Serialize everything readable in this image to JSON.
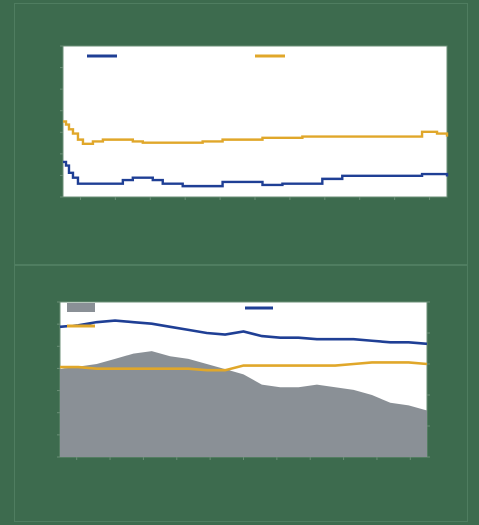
{
  "colors": {
    "background": "#3d6b4e",
    "plot_background": "#ffffff",
    "blue": "#1f3f95",
    "gold": "#e0a72a",
    "gray_area": "#8a9096"
  },
  "chart_data": [
    {
      "type": "line",
      "title": "",
      "xlabel": "",
      "ylabel": "",
      "grid": false,
      "legend": "top",
      "ylim": [
        5.4,
        7.9
      ],
      "y_ticks": [
        "",
        "",
        "",
        "",
        "",
        "",
        "",
        ""
      ],
      "x_tick_labels": [
        "",
        "",
        "",
        "",
        "",
        "",
        "",
        "",
        "",
        "",
        ""
      ],
      "x": [
        0,
        3,
        6,
        10,
        15,
        20,
        30,
        40,
        50,
        60,
        70,
        80,
        90,
        100,
        120,
        140,
        160,
        180,
        200,
        220,
        240,
        260,
        280,
        300,
        320,
        340,
        360,
        375,
        385
      ],
      "series": [
        {
          "name": "",
          "color": "#1f3f95",
          "values": [
            5.98,
            5.92,
            5.8,
            5.72,
            5.62,
            5.62,
            5.62,
            5.62,
            5.62,
            5.68,
            5.72,
            5.72,
            5.68,
            5.62,
            5.58,
            5.58,
            5.65,
            5.65,
            5.6,
            5.62,
            5.62,
            5.7,
            5.75,
            5.75,
            5.75,
            5.75,
            5.78,
            5.78,
            5.74
          ]
        },
        {
          "name": "",
          "color": "#e0a72a",
          "values": [
            6.65,
            6.6,
            6.52,
            6.45,
            6.35,
            6.28,
            6.32,
            6.35,
            6.35,
            6.35,
            6.32,
            6.3,
            6.3,
            6.3,
            6.3,
            6.32,
            6.35,
            6.35,
            6.38,
            6.38,
            6.4,
            6.4,
            6.4,
            6.4,
            6.4,
            6.4,
            6.48,
            6.45,
            6.4
          ]
        }
      ]
    },
    {
      "type": "line",
      "title": "",
      "xlabel": "",
      "ylabel": "",
      "ylabel_right": "",
      "grid": false,
      "legend": "top",
      "ylim": [
        0,
        6
      ],
      "y2lim": [
        3.0,
        8.0
      ],
      "y_ticks": [
        "",
        "",
        "",
        "",
        "",
        "",
        "",
        ""
      ],
      "y2_ticks": [
        "",
        "",
        "",
        "",
        "",
        ""
      ],
      "x_tick_labels": [
        "",
        "",
        "",
        "",
        "",
        "",
        "",
        "",
        "",
        "",
        ""
      ],
      "x": [
        0,
        5,
        10,
        15,
        20,
        25,
        30,
        35,
        40,
        45,
        50,
        55,
        60,
        65,
        70,
        75,
        80,
        85,
        90,
        95,
        100
      ],
      "series": [
        {
          "name": "",
          "type": "area",
          "axis": "left",
          "color": "#8a9096",
          "values": [
            3.4,
            3.5,
            3.6,
            3.8,
            4.0,
            4.1,
            3.9,
            3.8,
            3.6,
            3.4,
            3.2,
            2.8,
            2.7,
            2.7,
            2.8,
            2.7,
            2.6,
            2.4,
            2.1,
            2.0,
            1.8
          ]
        },
        {
          "name": "",
          "type": "line",
          "axis": "right",
          "color": "#1f3f95",
          "values": [
            7.2,
            7.25,
            7.35,
            7.4,
            7.35,
            7.3,
            7.2,
            7.1,
            7.0,
            6.95,
            7.05,
            6.9,
            6.85,
            6.85,
            6.8,
            6.8,
            6.8,
            6.75,
            6.7,
            6.7,
            6.65
          ]
        },
        {
          "name": "",
          "type": "line",
          "axis": "right",
          "color": "#e0a72a",
          "values": [
            5.9,
            5.9,
            5.85,
            5.85,
            5.85,
            5.85,
            5.85,
            5.85,
            5.8,
            5.8,
            5.95,
            5.95,
            5.95,
            5.95,
            5.95,
            5.95,
            6.0,
            6.05,
            6.05,
            6.05,
            6.0
          ]
        }
      ]
    }
  ]
}
